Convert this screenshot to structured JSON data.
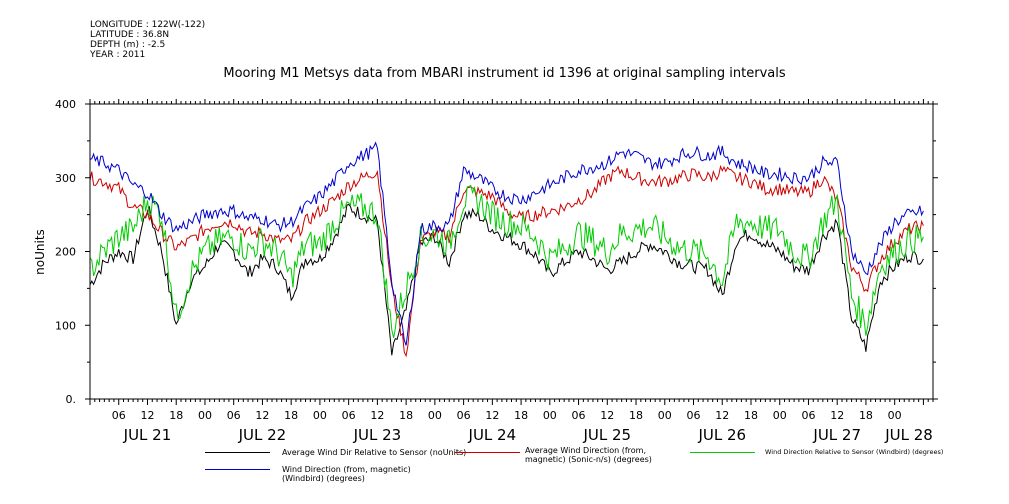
{
  "meta": {
    "longitude": "LONGITUDE : 122W(-122)",
    "latitude": "LATITUDE : 36.8N",
    "depth": "DEPTH (m) : -2.5",
    "year": "YEAR : 2011"
  },
  "chart_data": {
    "type": "line",
    "title": "Mooring M1 Metsys data from MBARI instrument id 1396 at original sampling intervals",
    "ylabel": "noUnits",
    "xlabel": "",
    "ylim": [
      0,
      400
    ],
    "yticks": [
      0,
      100,
      200,
      300,
      400
    ],
    "ytick_labels": [
      "0.",
      "100",
      "200",
      "300",
      "400"
    ],
    "xlim_hours": [
      0,
      176
    ],
    "hour_ticks": [
      {
        "label": "06",
        "h": 6
      },
      {
        "label": "12",
        "h": 12
      },
      {
        "label": "18",
        "h": 18
      },
      {
        "label": "00",
        "h": 24
      },
      {
        "label": "06",
        "h": 30
      },
      {
        "label": "12",
        "h": 36
      },
      {
        "label": "18",
        "h": 42
      },
      {
        "label": "00",
        "h": 48
      },
      {
        "label": "06",
        "h": 54
      },
      {
        "label": "12",
        "h": 60
      },
      {
        "label": "18",
        "h": 66
      },
      {
        "label": "00",
        "h": 72
      },
      {
        "label": "06",
        "h": 78
      },
      {
        "label": "12",
        "h": 84
      },
      {
        "label": "18",
        "h": 90
      },
      {
        "label": "00",
        "h": 96
      },
      {
        "label": "06",
        "h": 102
      },
      {
        "label": "12",
        "h": 108
      },
      {
        "label": "18",
        "h": 114
      },
      {
        "label": "00",
        "h": 120
      },
      {
        "label": "06",
        "h": 126
      },
      {
        "label": "12",
        "h": 132
      },
      {
        "label": "18",
        "h": 138
      },
      {
        "label": "00",
        "h": 144
      },
      {
        "label": "06",
        "h": 150
      },
      {
        "label": "12",
        "h": 156
      },
      {
        "label": "18",
        "h": 162
      },
      {
        "label": "00",
        "h": 168
      }
    ],
    "day_labels": [
      {
        "label": "JUL 21",
        "h": 12
      },
      {
        "label": "JUL 22",
        "h": 36
      },
      {
        "label": "JUL 23",
        "h": 60
      },
      {
        "label": "JUL 24",
        "h": 84
      },
      {
        "label": "JUL 25",
        "h": 108
      },
      {
        "label": "JUL 26",
        "h": 132
      },
      {
        "label": "JUL 27",
        "h": 156
      },
      {
        "label": "JUL 28",
        "h": 171
      }
    ],
    "series": [
      {
        "name": "Average Wind Dir Relative to Sensor (noUnits)",
        "color": "#000000",
        "hours": [
          0,
          3,
          6,
          9,
          12,
          15,
          18,
          21,
          24,
          27,
          30,
          33,
          36,
          39,
          42,
          45,
          48,
          51,
          54,
          57,
          60,
          63,
          66,
          69,
          72,
          75,
          78,
          81,
          84,
          87,
          90,
          93,
          96,
          99,
          102,
          105,
          108,
          111,
          114,
          117,
          120,
          123,
          126,
          129,
          132,
          135,
          138,
          141,
          144,
          147,
          150,
          153,
          156,
          159,
          162,
          165,
          168,
          171,
          174
        ],
        "values": [
          155,
          185,
          200,
          190,
          260,
          200,
          100,
          160,
          180,
          210,
          200,
          170,
          190,
          180,
          140,
          190,
          190,
          220,
          260,
          250,
          240,
          60,
          120,
          210,
          220,
          185,
          250,
          250,
          230,
          220,
          210,
          195,
          170,
          185,
          200,
          190,
          175,
          185,
          200,
          210,
          200,
          185,
          180,
          175,
          140,
          215,
          225,
          210,
          200,
          180,
          175,
          220,
          240,
          110,
          70,
          160,
          180,
          195,
          190
        ]
      },
      {
        "name": "Average Wind Direction (from, magnetic) (Sonic-n/s) (degrees)",
        "color": "#cc0000",
        "hours": [
          0,
          3,
          6,
          9,
          12,
          15,
          18,
          21,
          24,
          27,
          30,
          33,
          36,
          39,
          42,
          45,
          48,
          51,
          54,
          57,
          60,
          63,
          66,
          69,
          72,
          75,
          78,
          81,
          84,
          87,
          90,
          93,
          96,
          99,
          102,
          105,
          108,
          111,
          114,
          117,
          120,
          123,
          126,
          129,
          132,
          135,
          138,
          141,
          144,
          147,
          150,
          153,
          156,
          159,
          162,
          165,
          168,
          171,
          174
        ],
        "values": [
          300,
          295,
          285,
          260,
          250,
          225,
          205,
          215,
          230,
          240,
          240,
          225,
          225,
          215,
          215,
          240,
          255,
          270,
          290,
          300,
          310,
          150,
          60,
          215,
          225,
          220,
          285,
          280,
          275,
          255,
          245,
          250,
          255,
          260,
          270,
          280,
          300,
          310,
          300,
          295,
          295,
          300,
          305,
          300,
          310,
          300,
          295,
          285,
          285,
          280,
          280,
          300,
          270,
          180,
          150,
          190,
          215,
          230,
          235
        ]
      },
      {
        "name": "Wind Direction Relative to Sensor (Windbird) (degrees)",
        "color": "#00cc00",
        "hours": [
          0,
          3,
          6,
          9,
          12,
          15,
          18,
          21,
          24,
          27,
          30,
          33,
          36,
          39,
          42,
          45,
          48,
          51,
          54,
          57,
          60,
          63,
          66,
          69,
          72,
          75,
          78,
          81,
          84,
          87,
          90,
          93,
          96,
          99,
          102,
          105,
          108,
          111,
          114,
          117,
          120,
          123,
          126,
          129,
          132,
          135,
          138,
          141,
          144,
          147,
          150,
          153,
          156,
          159,
          162,
          165,
          168,
          171,
          174
        ],
        "values": [
          175,
          200,
          220,
          230,
          270,
          250,
          110,
          170,
          200,
          215,
          220,
          200,
          215,
          200,
          165,
          210,
          210,
          240,
          260,
          260,
          250,
          90,
          150,
          215,
          225,
          210,
          270,
          270,
          250,
          240,
          235,
          220,
          190,
          205,
          225,
          215,
          200,
          225,
          230,
          235,
          220,
          205,
          200,
          195,
          160,
          240,
          240,
          230,
          230,
          200,
          190,
          240,
          270,
          140,
          100,
          180,
          200,
          215,
          220
        ]
      },
      {
        "name": "Wind Direction (from, magnetic) (Windbird) (degrees)",
        "color": "#0000cc",
        "hours": [
          0,
          3,
          6,
          9,
          12,
          15,
          18,
          21,
          24,
          27,
          30,
          33,
          36,
          39,
          42,
          45,
          48,
          51,
          54,
          57,
          60,
          63,
          66,
          69,
          72,
          75,
          78,
          81,
          84,
          87,
          90,
          93,
          96,
          99,
          102,
          105,
          108,
          111,
          114,
          117,
          120,
          123,
          126,
          129,
          132,
          135,
          138,
          141,
          144,
          147,
          150,
          153,
          156,
          159,
          162,
          165,
          168,
          171,
          174
        ],
        "values": [
          325,
          320,
          310,
          290,
          280,
          250,
          230,
          240,
          250,
          255,
          255,
          245,
          245,
          235,
          240,
          260,
          275,
          295,
          320,
          330,
          340,
          160,
          70,
          230,
          235,
          235,
          310,
          300,
          285,
          275,
          270,
          280,
          290,
          300,
          310,
          315,
          320,
          335,
          330,
          320,
          320,
          330,
          335,
          330,
          335,
          320,
          315,
          305,
          305,
          300,
          300,
          320,
          320,
          200,
          170,
          210,
          240,
          250,
          255
        ]
      }
    ]
  }
}
